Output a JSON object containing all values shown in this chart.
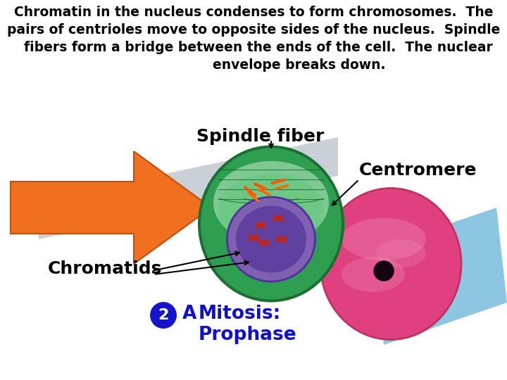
{
  "bg_color": "#ffffff",
  "title_line1": "Chromatin in the nucleus condenses to form chromosomes.  The",
  "title_line2": "pairs of centrioles move to opposite sides of the nucleus.  Spindle",
  "title_line3": "  fibers form a bridge between the ends of the cell.  The nuclear",
  "title_line4": "                    envelope breaks down.",
  "title_fontsize": 13.5,
  "spindle_fiber_label": "Spindle fiber",
  "centromere_label": "Centromere",
  "chromatids_label": "Chromatids",
  "mitosis_line1": "Mitosis:",
  "mitosis_line2": "Prophase",
  "step_num": "2",
  "step_letter": "A",
  "orange_arrow_color": "#F07020",
  "blue_para_color": "#80C0E0",
  "gray_fiber_color": "#C0C8D0",
  "green_cell_outer": "#2E9E50",
  "green_cell_inner": "#60C878",
  "green_cell_lightest": "#A8E0B8",
  "pink_cell_color": "#E04080",
  "pink_cell_light": "#F080A8",
  "purple_nuc_color": "#8060B0",
  "purple_nuc_dark": "#5030A0",
  "dark_label_color": "#000000",
  "blue_label_color": "#1010CC",
  "step_circle_color": "#1515CC",
  "label_fontsize": 15,
  "step_badge_fontsize": 17,
  "mitosis_fontsize": 19
}
